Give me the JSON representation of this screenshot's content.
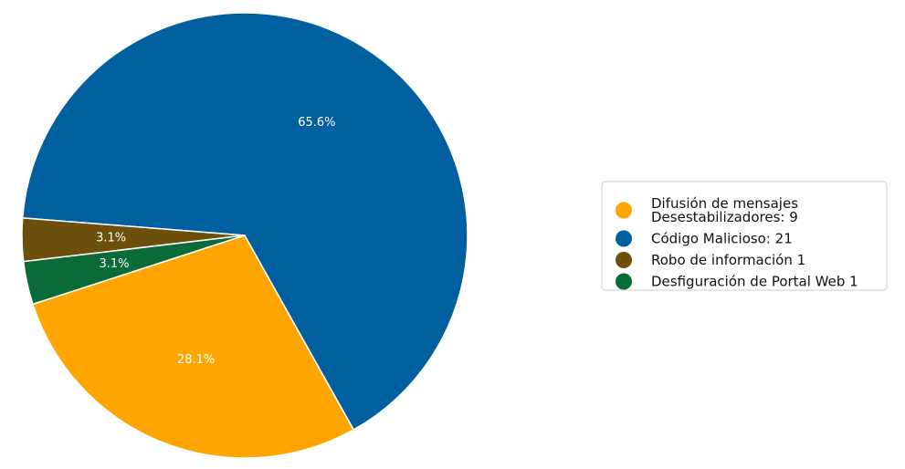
{
  "chart_data": {
    "type": "pie",
    "start_angle_deg": 198,
    "direction": "counterclockwise",
    "slices": [
      {
        "label": [
          "Difusión de mensajes",
          "Desestabilizadores: 9"
        ],
        "value": 9,
        "pct_label": "28.1%",
        "color": "#FFA500"
      },
      {
        "label": [
          "Código Malicioso: 21"
        ],
        "value": 21,
        "pct_label": "65.6%",
        "color": "#005F9E"
      },
      {
        "label": [
          "Robo de información 1"
        ],
        "value": 1,
        "pct_label": "3.1%",
        "color": "#6B4F0B"
      },
      {
        "label": [
          "Desfiguración de Portal Web 1"
        ],
        "value": 1,
        "pct_label": "3.1%",
        "color": "#0B6B38"
      }
    ],
    "legend_position": "right"
  }
}
